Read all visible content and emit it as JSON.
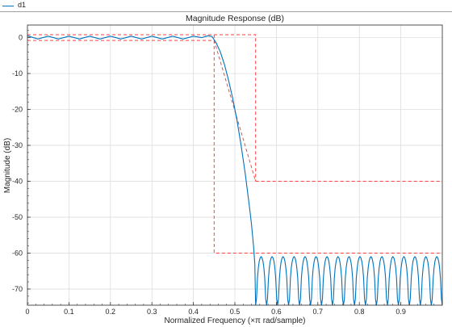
{
  "legend": {
    "entries": [
      {
        "label": "d1"
      }
    ]
  },
  "chart_data": {
    "type": "line",
    "title": "Magnitude Response (dB)",
    "xlabel": "Normalized Frequency (×π rad/sample)",
    "ylabel": "Magnitude (dB)",
    "xlim": [
      0,
      1
    ],
    "ylim": [
      -74.5,
      3.5
    ],
    "grid": true,
    "xtick_labels": [
      "0",
      "0.1",
      "0.2",
      "0.3",
      "0.4",
      "0.5",
      "0.6",
      "0.7",
      "0.8",
      "0.9"
    ],
    "ytick_labels": [
      "0",
      "-10",
      "-20",
      "-30",
      "-40",
      "-50",
      "-60",
      "-70"
    ],
    "xticks": [
      0,
      0.1,
      0.2,
      0.3,
      0.4,
      0.5,
      0.6,
      0.7,
      0.8,
      0.9
    ],
    "yticks": [
      0,
      -10,
      -20,
      -30,
      -40,
      -50,
      -60,
      -70
    ],
    "series": [
      {
        "name": "d1",
        "color": "#0072bd",
        "x": [
          0,
          0.025,
          0.05,
          0.075,
          0.1,
          0.125,
          0.15,
          0.175,
          0.2,
          0.225,
          0.25,
          0.275,
          0.3,
          0.325,
          0.35,
          0.375,
          0.4,
          0.42,
          0.435,
          0.445,
          0.455,
          0.465,
          0.475,
          0.485,
          0.495,
          0.505,
          0.515,
          0.525,
          0.535,
          0.54,
          0.545,
          0.548,
          0.55
        ],
        "y": [
          0.5,
          -0.4,
          0.4,
          -0.4,
          0.4,
          -0.4,
          0.4,
          -0.4,
          0.4,
          -0.4,
          0.4,
          -0.4,
          0.4,
          -0.4,
          0.4,
          -0.4,
          0.4,
          0.0,
          0.5,
          0.3,
          -1.5,
          -4,
          -7.5,
          -12,
          -17,
          -23,
          -30,
          -38,
          -47,
          -52,
          -58,
          -63,
          -74.5
        ],
        "stopband_lobes": {
          "start": 0.55,
          "end": 1.0,
          "count": 17,
          "peak_db": -61,
          "floor_db": -74.5
        }
      }
    ],
    "mask": {
      "color": "#ff4040",
      "style": "dashed",
      "lines": [
        {
          "x": [
            0,
            0.55,
            0.55
          ],
          "y": [
            0.8,
            0.8,
            -40
          ]
        },
        {
          "x": [
            0,
            0.45,
            0.55
          ],
          "y": [
            -0.8,
            -0.8,
            -40
          ]
        },
        {
          "x": [
            0.55,
            1.0
          ],
          "y": [
            -40,
            -40
          ]
        },
        {
          "x": [
            0.45,
            0.45,
            1.0
          ],
          "y": [
            0.8,
            -60,
            -60
          ]
        }
      ]
    }
  }
}
